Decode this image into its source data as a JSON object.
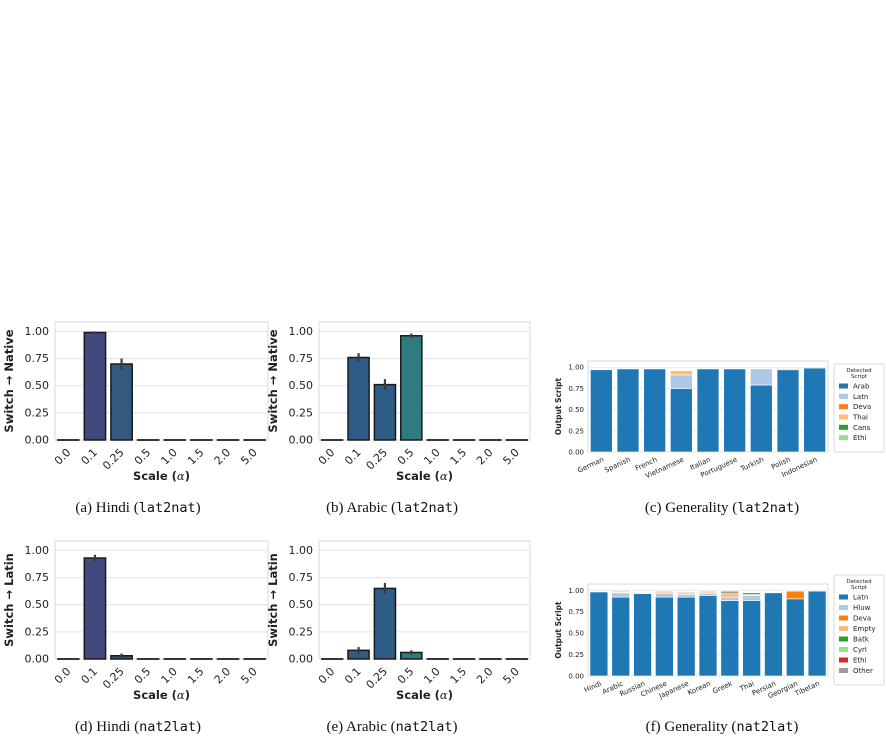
{
  "colors": {
    "hindi_bar": "#414a7e",
    "hindi_bar2": "#33597d",
    "arabic_bar": "#2f5c86",
    "arabic_bar_teal": "#2e7b80",
    "arab": "#1f77b4",
    "latn": "#aec7e8",
    "deva": "#ff7f0e",
    "thai": "#ffbb78",
    "cans": "#2ca02c",
    "ethi_legend1": "#98df8a",
    "latn2": "#1f77b4",
    "hluw": "#aec7e8",
    "empty": "#ffbb78",
    "batk": "#2ca02c",
    "cyrl": "#98df8a",
    "ethi2": "#d62728",
    "other": "#9a9a9a"
  },
  "captions": [
    {
      "prefix": "(a) Hindi (",
      "code": "lat2nat",
      "suffix": ")"
    },
    {
      "prefix": "(b) Arabic (",
      "code": "lat2nat",
      "suffix": ")"
    },
    {
      "prefix": "(c) Generality (",
      "code": "lat2nat",
      "suffix": ")"
    },
    {
      "prefix": "(d) Hindi (",
      "code": "nat2lat",
      "suffix": ")"
    },
    {
      "prefix": "(e) Arabic (",
      "code": "nat2lat",
      "suffix": ")"
    },
    {
      "prefix": "(f) Generality (",
      "code": "nat2lat",
      "suffix": ")"
    }
  ],
  "chart_data": [
    {
      "type": "bar",
      "ylabel": "Switch → Native",
      "xlabel": "Scale (α)",
      "categories": [
        "0.0",
        "0.1",
        "0.25",
        "0.5",
        "1.0",
        "1.5",
        "2.0",
        "5.0"
      ],
      "values": [
        0.0,
        0.99,
        0.7,
        0.0,
        0.0,
        0.0,
        0.0,
        0.0
      ],
      "errors": [
        0.0,
        0.01,
        0.05,
        0.0,
        0.0,
        0.0,
        0.0,
        0.0
      ],
      "ylim": [
        0,
        1.05
      ],
      "yticks": [
        "0.00",
        "0.25",
        "0.50",
        "0.75",
        "1.00"
      ],
      "grid": true
    },
    {
      "type": "bar",
      "ylabel": "Switch → Native",
      "xlabel": "Scale (α)",
      "categories": [
        "0.0",
        "0.1",
        "0.25",
        "0.5",
        "1.0",
        "1.5",
        "2.0",
        "5.0"
      ],
      "values": [
        0.0,
        0.76,
        0.51,
        0.96,
        0.0,
        0.0,
        0.0,
        0.0
      ],
      "errors": [
        0.0,
        0.04,
        0.05,
        0.02,
        0.0,
        0.0,
        0.0,
        0.0
      ],
      "ylim": [
        0,
        1.05
      ],
      "yticks": [
        "0.00",
        "0.25",
        "0.50",
        "0.75",
        "1.00"
      ],
      "grid": true
    },
    {
      "type": "bar",
      "stacked": true,
      "ylabel": "Output Script",
      "categories": [
        "German",
        "Spanish",
        "French",
        "Vietnamese",
        "Italian",
        "Portuguese",
        "Turkish",
        "Polish",
        "Indonesian"
      ],
      "series": [
        {
          "name": "Arab",
          "values": [
            0.97,
            0.98,
            0.98,
            0.75,
            0.98,
            0.98,
            0.79,
            0.97,
            0.99
          ]
        },
        {
          "name": "Latn",
          "values": [
            0,
            0,
            0,
            0.16,
            0,
            0,
            0.19,
            0,
            0
          ]
        },
        {
          "name": "Deva",
          "values": [
            0,
            0,
            0,
            0,
            0,
            0,
            0,
            0.01,
            0
          ]
        },
        {
          "name": "Thai",
          "values": [
            0,
            0,
            0,
            0.05,
            0,
            0,
            0,
            0.01,
            0
          ]
        },
        {
          "name": "Cans",
          "values": [
            0,
            0,
            0,
            0,
            0,
            0,
            0,
            0,
            0
          ]
        },
        {
          "name": "Ethi",
          "values": [
            0,
            0,
            0,
            0,
            0,
            0,
            0,
            0,
            0
          ]
        }
      ],
      "legend_title": "Detected Script",
      "legend_position": "right",
      "ylim": [
        0,
        1.05
      ],
      "yticks": [
        "0.00",
        "0.25",
        "0.50",
        "0.75",
        "1.00"
      ],
      "grid": true
    },
    {
      "type": "bar",
      "ylabel": "Switch → Latin",
      "xlabel": "Scale (α)",
      "categories": [
        "0.0",
        "0.1",
        "0.25",
        "0.5",
        "1.0",
        "1.5",
        "2.0",
        "5.0"
      ],
      "values": [
        0.0,
        0.93,
        0.03,
        0.0,
        0.0,
        0.0,
        0.0,
        0.0
      ],
      "errors": [
        0.0,
        0.03,
        0.02,
        0.0,
        0.0,
        0.0,
        0.0,
        0.0
      ],
      "ylim": [
        0,
        1.05
      ],
      "yticks": [
        "0.00",
        "0.25",
        "0.50",
        "0.75",
        "1.00"
      ],
      "grid": true
    },
    {
      "type": "bar",
      "ylabel": "Switch → Latin",
      "xlabel": "Scale (α)",
      "categories": [
        "0.0",
        "0.1",
        "0.25",
        "0.5",
        "1.0",
        "1.5",
        "2.0",
        "5.0"
      ],
      "values": [
        0.0,
        0.08,
        0.65,
        0.06,
        0.0,
        0.0,
        0.0,
        0.0
      ],
      "errors": [
        0.0,
        0.03,
        0.05,
        0.02,
        0.0,
        0.0,
        0.0,
        0.0
      ],
      "ylim": [
        0,
        1.05
      ],
      "yticks": [
        "0.00",
        "0.25",
        "0.50",
        "0.75",
        "1.00"
      ],
      "grid": true
    },
    {
      "type": "bar",
      "stacked": true,
      "ylabel": "Output Script",
      "categories": [
        "Hindi",
        "Arabic",
        "Russian",
        "Chinese",
        "Japanese",
        "Korean",
        "Greek",
        "Thai",
        "Persian",
        "Georgian",
        "Tibetan"
      ],
      "series": [
        {
          "name": "Latn",
          "values": [
            0.98,
            0.92,
            0.96,
            0.92,
            0.92,
            0.94,
            0.88,
            0.88,
            0.97,
            0.9,
            0.99
          ]
        },
        {
          "name": "Hluw",
          "values": [
            0,
            0.05,
            0,
            0.04,
            0.03,
            0.02,
            0.04,
            0.06,
            0,
            0,
            0
          ]
        },
        {
          "name": "Deva",
          "values": [
            0,
            0,
            0,
            0,
            0,
            0,
            0,
            0,
            0,
            0.09,
            0
          ]
        },
        {
          "name": "Empty",
          "values": [
            0,
            0.01,
            0.01,
            0.02,
            0.02,
            0.02,
            0.04,
            0.01,
            0,
            0,
            0
          ]
        },
        {
          "name": "Batk",
          "values": [
            0,
            0,
            0,
            0,
            0,
            0,
            0,
            0.02,
            0,
            0,
            0
          ]
        },
        {
          "name": "Cyrl",
          "values": [
            0,
            0,
            0,
            0,
            0,
            0,
            0,
            0,
            0,
            0,
            0
          ]
        },
        {
          "name": "Ethi",
          "values": [
            0,
            0,
            0,
            0,
            0,
            0,
            0,
            0,
            0,
            0,
            0
          ]
        },
        {
          "name": "Other",
          "values": [
            0,
            0.01,
            0,
            0.01,
            0.01,
            0.01,
            0.03,
            0,
            0,
            0,
            0
          ]
        }
      ],
      "legend_title": "Detected Script",
      "legend_position": "right",
      "ylim": [
        0,
        1.05
      ],
      "yticks": [
        "0.00",
        "0.25",
        "0.50",
        "0.75",
        "1.00"
      ],
      "grid": true
    }
  ]
}
